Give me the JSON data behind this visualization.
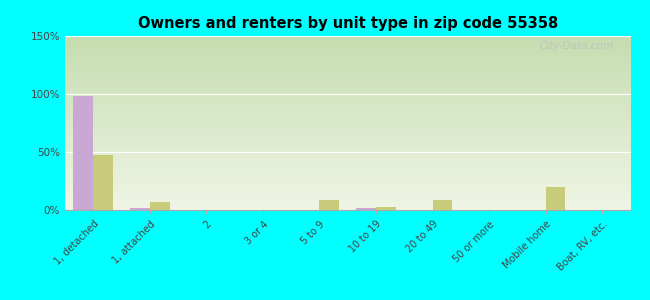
{
  "title": "Owners and renters by unit type in zip code 55358",
  "categories": [
    "1, detached",
    "1, attached",
    "2",
    "3 or 4",
    "5 to 9",
    "10 to 19",
    "20 to 49",
    "50 or more",
    "Mobile home",
    "Boat, RV, etc."
  ],
  "owner_values": [
    98,
    2,
    0,
    0,
    0,
    2,
    0,
    0,
    0,
    0
  ],
  "renter_values": [
    47,
    7,
    0,
    0,
    9,
    3,
    9,
    0,
    20,
    0
  ],
  "owner_color": "#c9a8d4",
  "renter_color": "#c8cc7a",
  "background_color": "#00ffff",
  "grad_top_color": "#c5ddb0",
  "grad_bot_color": "#f0f5e5",
  "ylim": [
    0,
    150
  ],
  "yticks": [
    0,
    50,
    100,
    150
  ],
  "ytick_labels": [
    "0%",
    "50%",
    "100%",
    "150%"
  ],
  "bar_width": 0.35,
  "watermark": "City-Data.com"
}
